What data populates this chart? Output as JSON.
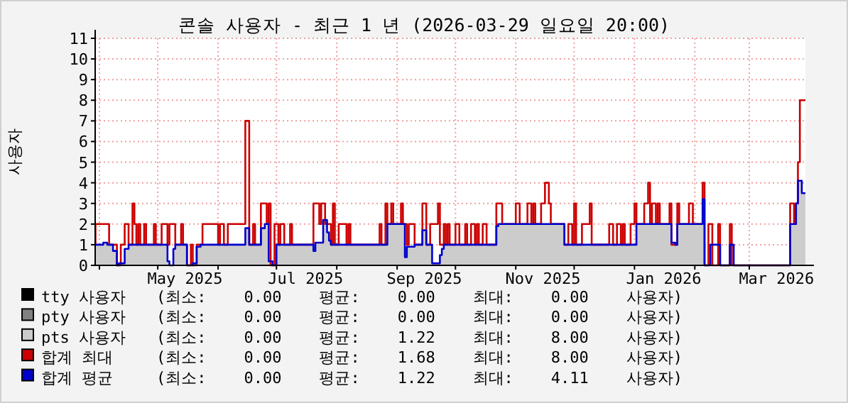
{
  "chart_data": {
    "type": "step",
    "title": "콘솔 사용자 - 최근 1 년 (2026-03-29 일요일 20:00)",
    "ylabel": "사용자",
    "xlim": [
      "2025-03-29T20:00",
      "2026-03-29T20:00"
    ],
    "ylim": [
      0,
      11
    ],
    "yticks": [
      0,
      1,
      2,
      3,
      4,
      5,
      6,
      7,
      8,
      9,
      10,
      11
    ],
    "xticks": [
      {
        "value": "2025-04-01",
        "label": null
      },
      {
        "value": "2025-05-01",
        "label": null
      },
      {
        "value": "2025-05-15",
        "label": "May 2025"
      },
      {
        "value": "2025-06-01",
        "label": null
      },
      {
        "value": "2025-07-01",
        "label": null
      },
      {
        "value": "2025-07-16",
        "label": "Jul 2025"
      },
      {
        "value": "2025-08-01",
        "label": null
      },
      {
        "value": "2025-09-01",
        "label": null
      },
      {
        "value": "2025-09-15",
        "label": "Sep 2025"
      },
      {
        "value": "2025-10-01",
        "label": null
      },
      {
        "value": "2025-11-01",
        "label": null
      },
      {
        "value": "2025-11-15",
        "label": "Nov 2025"
      },
      {
        "value": "2025-12-01",
        "label": null
      },
      {
        "value": "2026-01-01",
        "label": null
      },
      {
        "value": "2026-01-16",
        "label": "Jan 2026"
      },
      {
        "value": "2026-02-01",
        "label": null
      },
      {
        "value": "2026-03-01",
        "label": null
      },
      {
        "value": "2026-03-15",
        "label": "Mar 2026"
      }
    ],
    "grid": true,
    "legend": "bottom",
    "series": [
      {
        "name": "tty 사용자",
        "type": "area",
        "color": "#000000"
      },
      {
        "name": "pty 사용자",
        "type": "area",
        "color": "#808080"
      },
      {
        "name": "pts 사용자",
        "type": "area",
        "color": "#cccccc",
        "x": [
          "2025-03-29T20:00",
          "2025-04-03",
          "2025-04-05",
          "2025-04-08",
          "2025-04-10",
          "2025-04-11",
          "2025-04-14",
          "2025-04-16",
          "2025-05-06",
          "2025-05-07",
          "2025-05-09",
          "2025-05-10",
          "2025-05-16",
          "2025-05-19",
          "2025-05-21",
          "2025-05-23",
          "2025-06-15",
          "2025-06-17",
          "2025-06-23",
          "2025-06-25",
          "2025-06-27",
          "2025-06-29",
          "2025-07-01",
          "2025-07-20",
          "2025-07-21",
          "2025-07-25",
          "2025-07-27",
          "2025-07-28",
          "2025-07-29",
          "2025-08-27",
          "2025-09-05",
          "2025-09-06",
          "2025-09-10",
          "2025-09-14",
          "2025-09-16",
          "2025-09-19",
          "2025-09-23",
          "2025-09-24",
          "2025-09-25",
          "2025-10-22",
          "2025-10-23",
          "2025-11-26",
          "2026-01-02",
          "2026-01-20",
          "2026-01-22",
          "2026-01-23",
          "2026-02-05",
          "2026-02-06",
          "2026-03-22",
          "2026-03-25",
          "2026-03-26",
          "2026-03-28",
          "2026-03-29T20:00"
        ],
        "values": [
          1,
          1.1,
          1,
          0.7,
          0,
          0.1,
          0.8,
          1,
          0.2,
          0,
          0.8,
          1,
          0,
          0.1,
          0.9,
          1,
          1.8,
          1,
          1.8,
          2,
          0.2,
          0,
          1,
          0.7,
          1.1,
          2.2,
          1.6,
          1.2,
          1,
          2,
          0.4,
          0.9,
          1,
          1.7,
          1,
          0.1,
          0.5,
          0.8,
          1,
          1.9,
          2,
          1,
          2,
          1.1,
          1,
          2,
          3.2,
          null,
          2,
          3,
          4.1,
          3.5,
          3.5
        ]
      },
      {
        "name": "합계 최대",
        "color": "#cc0000",
        "x": [
          "2025-03-29T20:00",
          "2025-03-30",
          "2025-04-06",
          "2025-04-10",
          "2025-04-12",
          "2025-04-14",
          "2025-04-16",
          "2025-04-18",
          "2025-04-19",
          "2025-04-20",
          "2025-04-21",
          "2025-04-22",
          "2025-04-24",
          "2025-04-25",
          "2025-04-29",
          "2025-04-30",
          "2025-05-03",
          "2025-05-06",
          "2025-05-07",
          "2025-05-10",
          "2025-05-13",
          "2025-05-14",
          "2025-05-16",
          "2025-05-18",
          "2025-05-19",
          "2025-05-21",
          "2025-05-24",
          "2025-06-01",
          "2025-06-02",
          "2025-06-04",
          "2025-06-06",
          "2025-06-15",
          "2025-06-17",
          "2025-06-19",
          "2025-06-20",
          "2025-06-23",
          "2025-06-26",
          "2025-06-27",
          "2025-06-28",
          "2025-06-30",
          "2025-07-02",
          "2025-07-03",
          "2025-07-05",
          "2025-07-08",
          "2025-07-09",
          "2025-07-20",
          "2025-07-23",
          "2025-07-24",
          "2025-07-26",
          "2025-07-29",
          "2025-07-30",
          "2025-07-31",
          "2025-08-02",
          "2025-08-06",
          "2025-08-07",
          "2025-08-08",
          "2025-08-23",
          "2025-08-24",
          "2025-08-26",
          "2025-08-27",
          "2025-08-29",
          "2025-08-30",
          "2025-09-03",
          "2025-09-04",
          "2025-09-06",
          "2025-09-07",
          "2025-09-10",
          "2025-09-14",
          "2025-09-16",
          "2025-09-18",
          "2025-09-22",
          "2025-09-23",
          "2025-09-25",
          "2025-09-26",
          "2025-09-27",
          "2025-09-28",
          "2025-10-01",
          "2025-10-03",
          "2025-10-06",
          "2025-10-07",
          "2025-10-09",
          "2025-10-11",
          "2025-10-12",
          "2025-10-13",
          "2025-10-15",
          "2025-10-17",
          "2025-10-22",
          "2025-10-25",
          "2025-11-01",
          "2025-11-03",
          "2025-11-07",
          "2025-11-09",
          "2025-11-10",
          "2025-11-11",
          "2025-11-14",
          "2025-11-16",
          "2025-11-18",
          "2025-11-19",
          "2025-11-26",
          "2025-11-28",
          "2025-11-30",
          "2025-12-01",
          "2025-12-02",
          "2025-12-05",
          "2025-12-09",
          "2025-12-10",
          "2025-12-19",
          "2025-12-21",
          "2025-12-23",
          "2025-12-25",
          "2025-12-26",
          "2025-12-27",
          "2025-12-30",
          "2026-01-01",
          "2026-01-02",
          "2026-01-06",
          "2026-01-08",
          "2026-01-09",
          "2026-01-10",
          "2026-01-12",
          "2026-01-13",
          "2026-01-14",
          "2026-01-19",
          "2026-01-20",
          "2026-01-23",
          "2026-01-24",
          "2026-01-29",
          "2026-01-31",
          "2026-02-05",
          "2026-02-06",
          "2026-02-08",
          "2026-02-10",
          "2026-02-13",
          "2026-02-14",
          "2026-02-19",
          "2026-02-20",
          "2026-03-22",
          "2026-03-24",
          "2026-03-25",
          "2026-03-26",
          "2026-03-27",
          "2026-03-29T20:00"
        ],
        "values": [
          1,
          2,
          1,
          0,
          1,
          2,
          1,
          3,
          2,
          1,
          2,
          1,
          2,
          1,
          2,
          1,
          2,
          1,
          2,
          1,
          2,
          1,
          0,
          1,
          0,
          1,
          2,
          1,
          2,
          1,
          2,
          7,
          1,
          2,
          1,
          3,
          2,
          3,
          0,
          2,
          1,
          2,
          1,
          2,
          1,
          3,
          2,
          3,
          2,
          1,
          3,
          1,
          2,
          1,
          2,
          1,
          2,
          1,
          3,
          2,
          3,
          2,
          3,
          2,
          1,
          2,
          1,
          3,
          1,
          2,
          3,
          1,
          2,
          1,
          2,
          1,
          2,
          1,
          2,
          1,
          2,
          1,
          2,
          1,
          2,
          1,
          3,
          2,
          3,
          2,
          3,
          2,
          3,
          2,
          3,
          4,
          3,
          2,
          1,
          2,
          1,
          3,
          1,
          2,
          3,
          1,
          2,
          1,
          2,
          1,
          2,
          1,
          2,
          3,
          2,
          3,
          4,
          2,
          3,
          2,
          3,
          2,
          3,
          1,
          3,
          2,
          3,
          2,
          4,
          0,
          2,
          0,
          2,
          0,
          2,
          0,
          3,
          2,
          3,
          5,
          8,
          8
        ]
      },
      {
        "name": "합계 평균",
        "color": "#0000cc",
        "x": [
          "2025-03-29T20:00",
          "2025-04-03",
          "2025-04-05",
          "2025-04-08",
          "2025-04-10",
          "2025-04-11",
          "2025-04-14",
          "2025-04-16",
          "2025-05-06",
          "2025-05-07",
          "2025-05-09",
          "2025-05-10",
          "2025-05-16",
          "2025-05-19",
          "2025-05-21",
          "2025-05-23",
          "2025-06-15",
          "2025-06-17",
          "2025-06-23",
          "2025-06-25",
          "2025-06-27",
          "2025-06-29",
          "2025-07-01",
          "2025-07-20",
          "2025-07-21",
          "2025-07-25",
          "2025-07-27",
          "2025-07-28",
          "2025-07-29",
          "2025-08-27",
          "2025-09-05",
          "2025-09-06",
          "2025-09-10",
          "2025-09-14",
          "2025-09-16",
          "2025-09-19",
          "2025-09-23",
          "2025-09-24",
          "2025-09-25",
          "2025-10-22",
          "2025-10-23",
          "2025-11-26",
          "2026-01-02",
          "2026-01-20",
          "2026-01-22",
          "2026-01-23",
          "2026-02-05",
          "2026-02-06",
          "2026-02-09",
          "2026-02-14",
          "2026-02-19",
          "2026-02-21",
          "2026-03-22",
          "2026-03-25",
          "2026-03-26",
          "2026-03-28",
          "2026-03-29T20:00"
        ],
        "values": [
          1,
          1.1,
          1,
          0.7,
          0,
          0.1,
          0.8,
          1,
          0.2,
          0,
          0.8,
          1,
          0,
          0.1,
          0.9,
          1,
          1.8,
          1,
          1.8,
          2,
          0.2,
          0,
          1,
          0.7,
          1.1,
          2.2,
          1.6,
          1.2,
          1,
          2,
          0.4,
          0.9,
          1,
          1.7,
          1,
          0.1,
          0.5,
          0.8,
          1,
          1.9,
          2,
          1,
          2,
          1.1,
          1,
          2,
          3.2,
          0,
          1,
          0,
          1,
          0,
          2,
          3,
          4.1,
          3.5,
          3.5
        ]
      }
    ],
    "annotations": [
      "(최소:    0.00    평균:    0.00    최대:    0.00    사용자)",
      "(최소:    0.00    평균:    0.00    최대:    0.00    사용자)",
      "(최소:    0.00    평균:    1.22    최대:    8.00    사용자)",
      "(최소:    0.00    평균:    1.68    최대:    8.00    사용자)",
      "(최소:    0.00    평균:    1.22    최대:    4.11    사용자)"
    ]
  }
}
